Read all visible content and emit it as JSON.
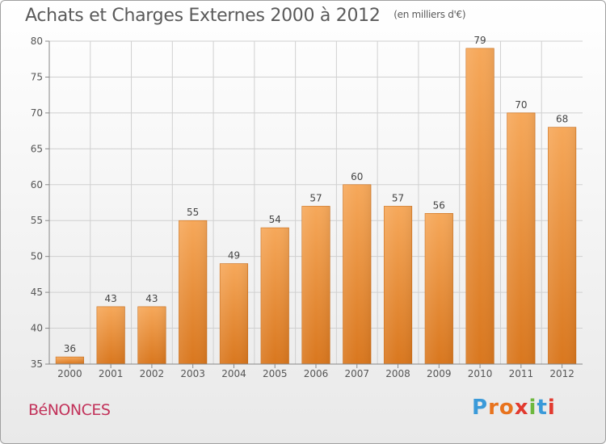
{
  "title": "Achats et Charges Externes 2000 à 2012",
  "unit": "(en milliers d'€)",
  "commune": "BéNONCES",
  "brand": {
    "text": "Proxiti",
    "letter_colors": [
      "#3a9ad9",
      "#e8731e",
      "#e8731e",
      "#e23a2f",
      "#6db83e",
      "#3a9ad9",
      "#e23a2f"
    ]
  },
  "colors": {
    "bar_light": "#f6a85a",
    "bar_dark": "#d9771e",
    "axis": "#888888",
    "grid": "#d0d0d0"
  },
  "chart_data": {
    "type": "bar",
    "categories": [
      "2000",
      "2001",
      "2002",
      "2003",
      "2004",
      "2005",
      "2006",
      "2007",
      "2008",
      "2009",
      "2010",
      "2011",
      "2012"
    ],
    "values": [
      36,
      43,
      43,
      55,
      49,
      54,
      57,
      60,
      57,
      56,
      79,
      70,
      68
    ],
    "ylim": [
      35,
      80
    ],
    "yticks": [
      35,
      40,
      45,
      50,
      55,
      60,
      65,
      70,
      75,
      80
    ],
    "grid": true,
    "data_labels": true
  }
}
